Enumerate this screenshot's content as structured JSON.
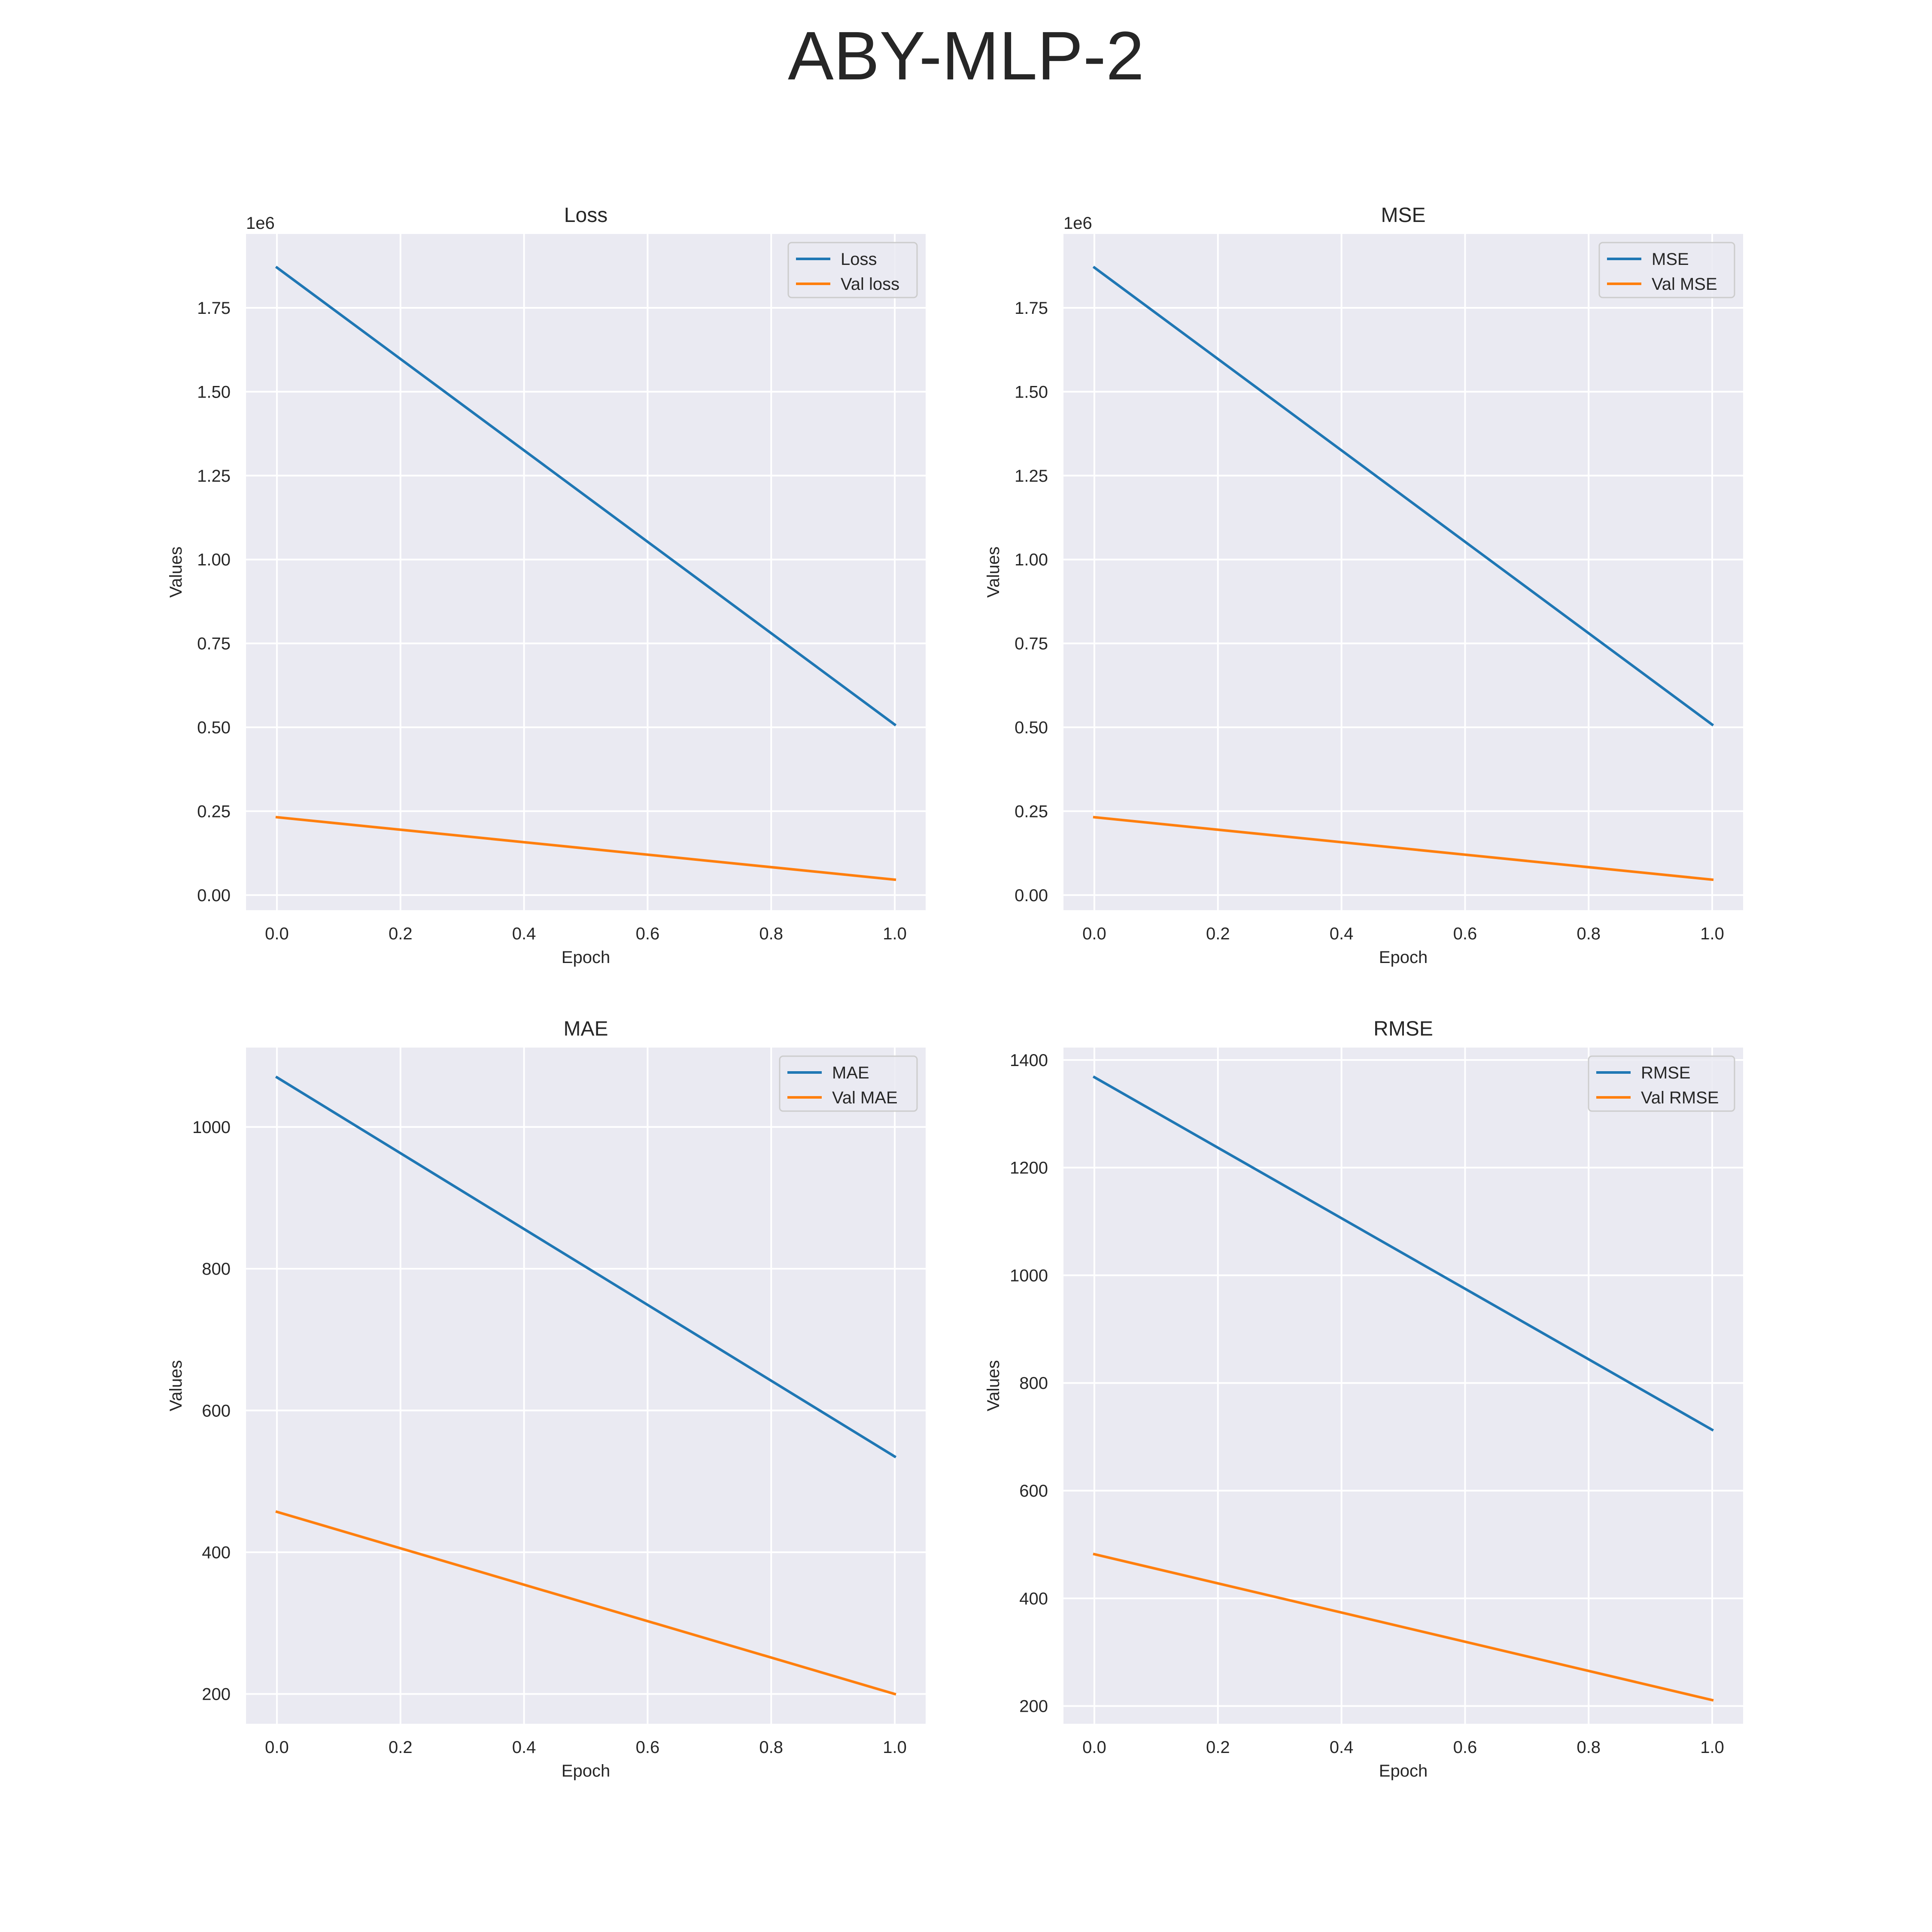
{
  "figure": {
    "title": "ABY-MLP-2"
  },
  "colors": {
    "train": "#1f77b4",
    "val": "#ff7f0e",
    "axes_bg": "#eaeaf2",
    "grid": "#ffffff"
  },
  "chart_data": [
    {
      "type": "line",
      "title": "Loss",
      "xlabel": "Epoch",
      "ylabel": "Values",
      "xlim": [
        -0.05,
        1.05
      ],
      "ylim": [
        -45000,
        1970000
      ],
      "offset_label": "1e6",
      "yscale": 1000000,
      "xticks": [
        0.0,
        0.2,
        0.4,
        0.6,
        0.8,
        1.0
      ],
      "yticks": [
        0,
        250000,
        500000,
        750000,
        1000000,
        1250000,
        1500000,
        1750000
      ],
      "ytick_labels": [
        "0.00",
        "0.25",
        "0.50",
        "0.75",
        "1.00",
        "1.25",
        "1.50",
        "1.75"
      ],
      "grid": true,
      "legend_position": "top-right",
      "x": [
        0,
        1
      ],
      "series": [
        {
          "name": "Loss",
          "values": [
            1870000,
            508000
          ]
        },
        {
          "name": "Val loss",
          "values": [
            232000,
            46000
          ]
        }
      ]
    },
    {
      "type": "line",
      "title": "MSE",
      "xlabel": "Epoch",
      "ylabel": "Values",
      "xlim": [
        -0.05,
        1.05
      ],
      "ylim": [
        -45000,
        1970000
      ],
      "offset_label": "1e6",
      "yscale": 1000000,
      "xticks": [
        0.0,
        0.2,
        0.4,
        0.6,
        0.8,
        1.0
      ],
      "yticks": [
        0,
        250000,
        500000,
        750000,
        1000000,
        1250000,
        1500000,
        1750000
      ],
      "ytick_labels": [
        "0.00",
        "0.25",
        "0.50",
        "0.75",
        "1.00",
        "1.25",
        "1.50",
        "1.75"
      ],
      "grid": true,
      "legend_position": "top-right",
      "x": [
        0,
        1
      ],
      "series": [
        {
          "name": "MSE",
          "values": [
            1870000,
            508000
          ]
        },
        {
          "name": "Val MSE",
          "values": [
            232000,
            46000
          ]
        }
      ]
    },
    {
      "type": "line",
      "title": "MAE",
      "xlabel": "Epoch",
      "ylabel": "Values",
      "xlim": [
        -0.05,
        1.05
      ],
      "ylim": [
        158,
        1112
      ],
      "xticks": [
        0.0,
        0.2,
        0.4,
        0.6,
        0.8,
        1.0
      ],
      "yticks": [
        200,
        400,
        600,
        800,
        1000
      ],
      "ytick_labels": [
        "200",
        "400",
        "600",
        "800",
        "1000"
      ],
      "grid": true,
      "legend_position": "top-right",
      "x": [
        0,
        1
      ],
      "series": [
        {
          "name": "MAE",
          "values": [
            1070,
            535
          ]
        },
        {
          "name": "Val MAE",
          "values": [
            457,
            200
          ]
        }
      ]
    },
    {
      "type": "line",
      "title": "RMSE",
      "xlabel": "Epoch",
      "ylabel": "Values",
      "xlim": [
        -0.05,
        1.05
      ],
      "ylim": [
        167,
        1423
      ],
      "xticks": [
        0.0,
        0.2,
        0.4,
        0.6,
        0.8,
        1.0
      ],
      "yticks": [
        200,
        400,
        600,
        800,
        1000,
        1200,
        1400
      ],
      "ytick_labels": [
        "200",
        "400",
        "600",
        "800",
        "1000",
        "1200",
        "1400"
      ],
      "grid": true,
      "legend_position": "top-right",
      "x": [
        0,
        1
      ],
      "series": [
        {
          "name": "RMSE",
          "values": [
            1368,
            713
          ]
        },
        {
          "name": "Val RMSE",
          "values": [
            482,
            211
          ]
        }
      ]
    }
  ]
}
